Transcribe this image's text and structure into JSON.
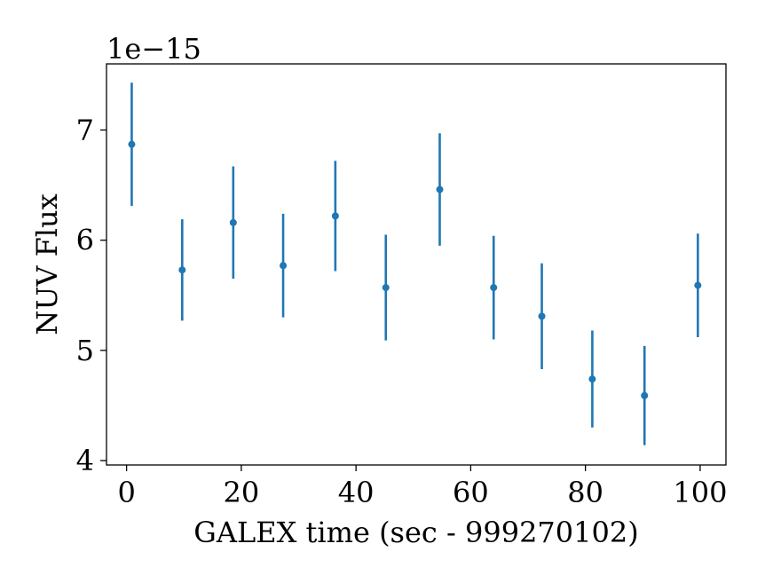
{
  "chart_data": {
    "type": "scatter",
    "title": "",
    "xlabel": "GALEX time (sec - 999270102)",
    "ylabel": "NUV Flux",
    "y_offset_label": "1e−15",
    "xlim": [
      -3.5,
      104.5
    ],
    "ylim": [
      3.96,
      7.6
    ],
    "x_ticks": [
      0,
      20,
      40,
      60,
      80,
      100
    ],
    "x_tick_labels": [
      "0",
      "20",
      "40",
      "60",
      "80",
      "100"
    ],
    "y_ticks": [
      4,
      5,
      6,
      7
    ],
    "y_tick_labels": [
      "4",
      "5",
      "6",
      "7"
    ],
    "grid": false,
    "marker_color": "#1f77b4",
    "points": [
      {
        "x": 0.9,
        "y": 6.87,
        "yerr": 0.56
      },
      {
        "x": 9.7,
        "y": 5.73,
        "yerr": 0.46
      },
      {
        "x": 18.6,
        "y": 6.16,
        "yerr": 0.51
      },
      {
        "x": 27.3,
        "y": 5.77,
        "yerr": 0.47
      },
      {
        "x": 36.4,
        "y": 6.22,
        "yerr": 0.5
      },
      {
        "x": 45.2,
        "y": 5.57,
        "yerr": 0.48
      },
      {
        "x": 54.6,
        "y": 6.46,
        "yerr": 0.51
      },
      {
        "x": 64.0,
        "y": 5.57,
        "yerr": 0.47
      },
      {
        "x": 72.4,
        "y": 5.31,
        "yerr": 0.48
      },
      {
        "x": 81.2,
        "y": 4.74,
        "yerr": 0.44
      },
      {
        "x": 90.3,
        "y": 4.59,
        "yerr": 0.45
      },
      {
        "x": 99.6,
        "y": 5.59,
        "yerr": 0.47
      }
    ]
  }
}
